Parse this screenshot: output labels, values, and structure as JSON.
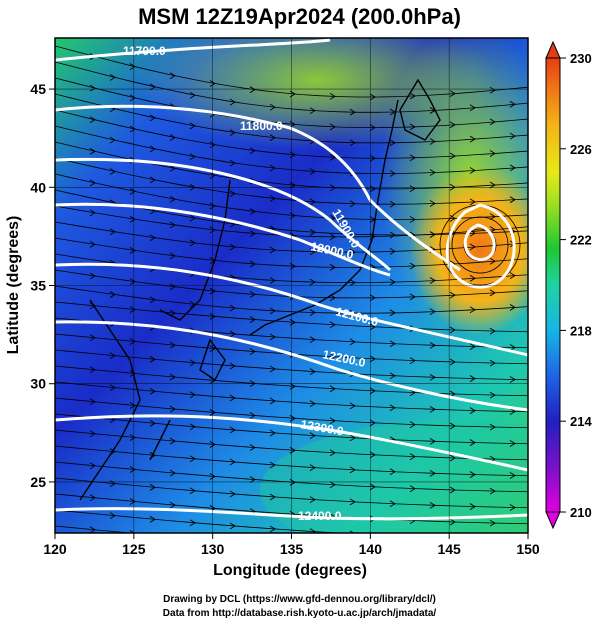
{
  "title": "MSM 12Z19Apr2024 (200.0hPa)",
  "credits": {
    "line1": "Drawing by DCL (https://www.gfd-dennou.org/library/dcl/)",
    "line2": "Data from http://database.rish.kyoto-u.ac.jp/arch/jmadata/"
  },
  "map": {
    "xlabel": "Longitude (degrees)",
    "ylabel": "Latitude  (degrees)",
    "lon_range": [
      120,
      150
    ],
    "lat_range": [
      22.4,
      47.6
    ],
    "lon_ticks": [
      120,
      125,
      130,
      135,
      140,
      145,
      150
    ],
    "lat_ticks": [
      25,
      30,
      35,
      40,
      45
    ],
    "colorbar": {
      "min": 210,
      "max": 230,
      "tick_values": [
        210,
        214,
        218,
        222,
        226,
        230
      ],
      "colors": [
        "#e000e0",
        "#7a10c8",
        "#2020c0",
        "#1e64e6",
        "#18b4e6",
        "#20d27a",
        "#1ec832",
        "#a0e020",
        "#e8e818",
        "#f4b418",
        "#f07814",
        "#e63c14"
      ]
    },
    "contours": [
      {
        "label": "11700.0"
      },
      {
        "label": "11800.0"
      },
      {
        "label": "11900.0"
      },
      {
        "label": "12000.0"
      },
      {
        "label": "12100.0"
      },
      {
        "label": "12200.0"
      },
      {
        "label": "12300.0"
      },
      {
        "label": "12400.0"
      }
    ]
  }
}
